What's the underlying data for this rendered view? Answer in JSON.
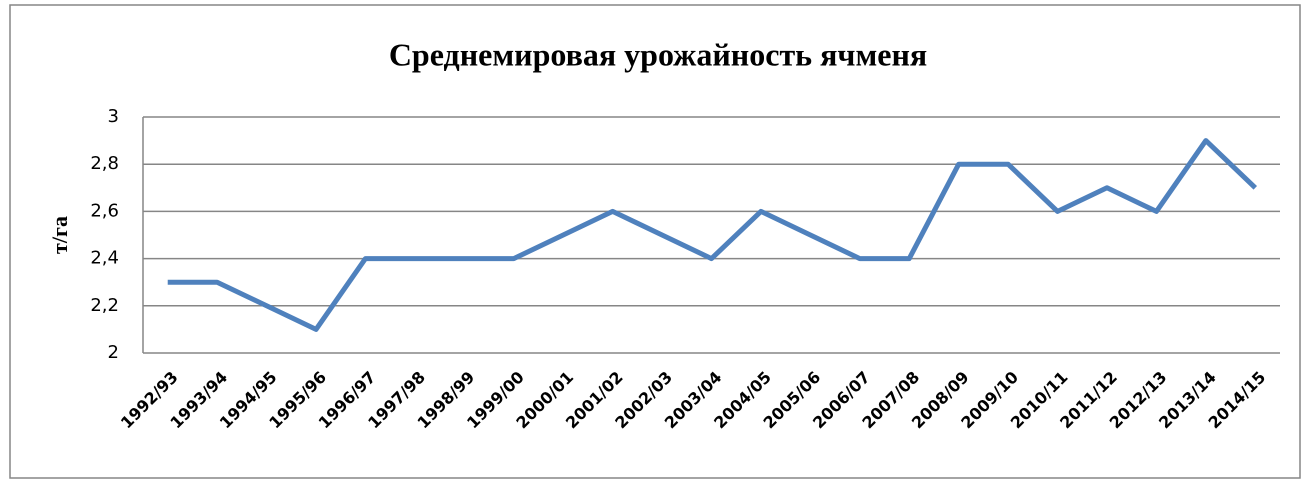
{
  "chart_data": {
    "type": "line",
    "title": "Среднемировая урожайность ячменя",
    "y_label": "т/га",
    "categories": [
      "1992/93",
      "1993/94",
      "1994/95",
      "1995/96",
      "1996/97",
      "1997/98",
      "1998/99",
      "1999/00",
      "2000/01",
      "2001/02",
      "2002/03",
      "2003/04",
      "2004/05",
      "2005/06",
      "2006/07",
      "2007/08",
      "2008/09",
      "2009/10",
      "2010/11",
      "2011/12",
      "2012/13",
      "2013/14",
      "2014/15"
    ],
    "values": [
      2.3,
      2.3,
      2.2,
      2.1,
      2.4,
      2.4,
      2.4,
      2.4,
      2.5,
      2.6,
      2.5,
      2.4,
      2.6,
      2.5,
      2.4,
      2.4,
      2.8,
      2.8,
      2.6,
      2.7,
      2.6,
      2.9,
      2.7
    ],
    "color": "#4f81bd",
    "ylim": [
      2,
      3
    ],
    "yticks": [
      2,
      {
        "value": 2.2,
        "label": "2,2"
      },
      {
        "value": 2.4,
        "label": "2,4"
      },
      {
        "value": 2.6,
        "label": "2,6"
      },
      {
        "value": 2.8,
        "label": "2,8"
      },
      3
    ],
    "grid": true
  }
}
